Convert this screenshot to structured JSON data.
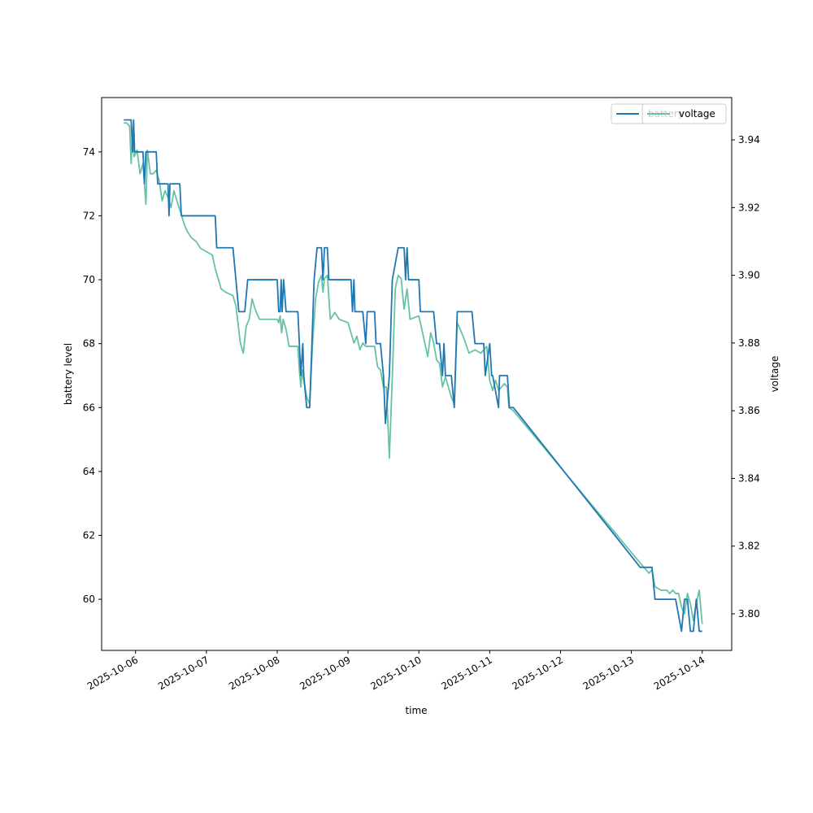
{
  "chart_data": {
    "type": "line",
    "title": "",
    "xlabel": "time",
    "ylabel_left": "battery level",
    "ylabel_right": "voltage",
    "x_range": [
      "2025-10-05T12:30",
      "2025-10-14T10:00"
    ],
    "y_left_range": [
      58.4,
      75.7
    ],
    "y_right_range": [
      3.7892,
      3.9525
    ],
    "x_ticks": [
      "2025-10-06",
      "2025-10-07",
      "2025-10-08",
      "2025-10-09",
      "2025-10-10",
      "2025-10-11",
      "2025-10-12",
      "2025-10-13",
      "2025-10-14"
    ],
    "y_left_ticks": [
      60,
      62,
      64,
      66,
      68,
      70,
      72,
      74
    ],
    "y_right_ticks": [
      "3.80",
      "3.82",
      "3.84",
      "3.86",
      "3.88",
      "3.90",
      "3.92",
      "3.94"
    ],
    "grid": false,
    "legend": {
      "placement": "upper right",
      "entries": [
        "battery",
        "voltage"
      ]
    },
    "colors": {
      "battery": "#1f77b4",
      "voltage": "#66c2a5"
    },
    "series": [
      {
        "name": "battery",
        "axis": "left",
        "points": [
          [
            "2025-10-05T20:00",
            75
          ],
          [
            "2025-10-05T22:30",
            75
          ],
          [
            "2025-10-05T23:00",
            74
          ],
          [
            "2025-10-05T23:20",
            75
          ],
          [
            "2025-10-05T23:40",
            74
          ],
          [
            "2025-10-06T02:30",
            74
          ],
          [
            "2025-10-06T03:00",
            73
          ],
          [
            "2025-10-06T03:30",
            74
          ],
          [
            "2025-10-06T07:00",
            74
          ],
          [
            "2025-10-06T07:30",
            73
          ],
          [
            "2025-10-06T11:00",
            73
          ],
          [
            "2025-10-06T11:20",
            72
          ],
          [
            "2025-10-06T11:40",
            73
          ],
          [
            "2025-10-06T15:00",
            73
          ],
          [
            "2025-10-06T15:30",
            72
          ],
          [
            "2025-10-07T03:00",
            72
          ],
          [
            "2025-10-07T03:30",
            71
          ],
          [
            "2025-10-07T09:00",
            71
          ],
          [
            "2025-10-07T10:00",
            70
          ],
          [
            "2025-10-07T11:00",
            69
          ],
          [
            "2025-10-07T13:00",
            69
          ],
          [
            "2025-10-07T14:00",
            70
          ],
          [
            "2025-10-08T00:00",
            70
          ],
          [
            "2025-10-08T00:30",
            69
          ],
          [
            "2025-10-08T01:00",
            69
          ],
          [
            "2025-10-08T01:20",
            70
          ],
          [
            "2025-10-08T01:40",
            69
          ],
          [
            "2025-10-08T02:10",
            70
          ],
          [
            "2025-10-08T03:00",
            69
          ],
          [
            "2025-10-08T07:00",
            69
          ],
          [
            "2025-10-08T08:00",
            67
          ],
          [
            "2025-10-08T08:40",
            68
          ],
          [
            "2025-10-08T09:00",
            67
          ],
          [
            "2025-10-08T10:00",
            66
          ],
          [
            "2025-10-08T11:00",
            66
          ],
          [
            "2025-10-08T12:30",
            70
          ],
          [
            "2025-10-08T13:30",
            71
          ],
          [
            "2025-10-08T15:00",
            71
          ],
          [
            "2025-10-08T15:30",
            70
          ],
          [
            "2025-10-08T16:00",
            71
          ],
          [
            "2025-10-08T17:00",
            71
          ],
          [
            "2025-10-08T17:30",
            70
          ],
          [
            "2025-10-09T00:00",
            70
          ],
          [
            "2025-10-09T01:00",
            70
          ],
          [
            "2025-10-09T01:30",
            69
          ],
          [
            "2025-10-09T02:00",
            70
          ],
          [
            "2025-10-09T02:20",
            69
          ],
          [
            "2025-10-09T05:00",
            69
          ],
          [
            "2025-10-09T06:00",
            68
          ],
          [
            "2025-10-09T06:30",
            69
          ],
          [
            "2025-10-09T09:00",
            69
          ],
          [
            "2025-10-09T09:30",
            68
          ],
          [
            "2025-10-09T11:00",
            68
          ],
          [
            "2025-10-09T12:00",
            67
          ],
          [
            "2025-10-09T12:40",
            65.5
          ],
          [
            "2025-10-09T14:00",
            67
          ],
          [
            "2025-10-09T15:00",
            70
          ],
          [
            "2025-10-09T16:00",
            70.5
          ],
          [
            "2025-10-09T17:00",
            71
          ],
          [
            "2025-10-09T19:00",
            71
          ],
          [
            "2025-10-09T19:30",
            70
          ],
          [
            "2025-10-09T20:00",
            71
          ],
          [
            "2025-10-09T20:30",
            70
          ],
          [
            "2025-10-10T00:00",
            70
          ],
          [
            "2025-10-10T00:30",
            69
          ],
          [
            "2025-10-10T05:00",
            69
          ],
          [
            "2025-10-10T06:00",
            68
          ],
          [
            "2025-10-10T07:00",
            68
          ],
          [
            "2025-10-10T08:00",
            67
          ],
          [
            "2025-10-10T08:30",
            68
          ],
          [
            "2025-10-10T09:00",
            67
          ],
          [
            "2025-10-10T11:00",
            67
          ],
          [
            "2025-10-10T12:00",
            66
          ],
          [
            "2025-10-10T13:00",
            69
          ],
          [
            "2025-10-10T18:00",
            69
          ],
          [
            "2025-10-10T19:00",
            68
          ],
          [
            "2025-10-10T22:00",
            68
          ],
          [
            "2025-10-10T22:30",
            67
          ],
          [
            "2025-10-11T00:00",
            68
          ],
          [
            "2025-10-11T00:40",
            67
          ],
          [
            "2025-10-11T01:00",
            67
          ],
          [
            "2025-10-11T03:00",
            66
          ],
          [
            "2025-10-11T03:20",
            67
          ],
          [
            "2025-10-11T06:00",
            67
          ],
          [
            "2025-10-11T06:40",
            66
          ],
          [
            "2025-10-11T08:00",
            66
          ],
          [
            "2025-10-13T03:00",
            61
          ],
          [
            "2025-10-13T07:00",
            61
          ],
          [
            "2025-10-13T08:00",
            60
          ],
          [
            "2025-10-13T15:00",
            60
          ],
          [
            "2025-10-13T17:00",
            59
          ],
          [
            "2025-10-13T18:00",
            60
          ],
          [
            "2025-10-13T19:00",
            60
          ],
          [
            "2025-10-13T20:00",
            59
          ],
          [
            "2025-10-13T21:00",
            59
          ],
          [
            "2025-10-13T22:00",
            60
          ],
          [
            "2025-10-13T23:00",
            59
          ],
          [
            "2025-10-14T00:00",
            59
          ]
        ]
      },
      {
        "name": "voltage",
        "axis": "right",
        "points": [
          [
            "2025-10-05T20:00",
            3.945
          ],
          [
            "2025-10-05T21:00",
            3.945
          ],
          [
            "2025-10-05T22:00",
            3.944
          ],
          [
            "2025-10-05T22:30",
            3.933
          ],
          [
            "2025-10-05T23:00",
            3.942
          ],
          [
            "2025-10-05T23:30",
            3.935
          ],
          [
            "2025-10-06T00:30",
            3.937
          ],
          [
            "2025-10-06T01:30",
            3.93
          ],
          [
            "2025-10-06T02:30",
            3.933
          ],
          [
            "2025-10-06T03:30",
            3.921
          ],
          [
            "2025-10-06T04:00",
            3.937
          ],
          [
            "2025-10-06T05:00",
            3.93
          ],
          [
            "2025-10-06T06:00",
            3.93
          ],
          [
            "2025-10-06T07:00",
            3.931
          ],
          [
            "2025-10-06T08:00",
            3.928
          ],
          [
            "2025-10-06T09:00",
            3.922
          ],
          [
            "2025-10-06T10:00",
            3.925
          ],
          [
            "2025-10-06T11:00",
            3.923
          ],
          [
            "2025-10-06T12:00",
            3.92
          ],
          [
            "2025-10-06T13:00",
            3.925
          ],
          [
            "2025-10-06T14:00",
            3.922
          ],
          [
            "2025-10-06T15:30",
            3.918
          ],
          [
            "2025-10-06T16:30",
            3.915
          ],
          [
            "2025-10-06T17:30",
            3.913
          ],
          [
            "2025-10-06T19:00",
            3.911
          ],
          [
            "2025-10-06T20:30",
            3.91
          ],
          [
            "2025-10-06T22:00",
            3.908
          ],
          [
            "2025-10-07T00:00",
            3.907
          ],
          [
            "2025-10-07T02:00",
            3.906
          ],
          [
            "2025-10-07T03:00",
            3.902
          ],
          [
            "2025-10-07T04:00",
            3.899
          ],
          [
            "2025-10-07T05:00",
            3.896
          ],
          [
            "2025-10-07T06:30",
            3.895
          ],
          [
            "2025-10-07T09:00",
            3.894
          ],
          [
            "2025-10-07T10:00",
            3.891
          ],
          [
            "2025-10-07T11:30",
            3.88
          ],
          [
            "2025-10-07T12:30",
            3.877
          ],
          [
            "2025-10-07T13:30",
            3.885
          ],
          [
            "2025-10-07T14:30",
            3.887
          ],
          [
            "2025-10-07T15:30",
            3.893
          ],
          [
            "2025-10-07T16:30",
            3.89
          ],
          [
            "2025-10-07T18:00",
            3.887
          ],
          [
            "2025-10-07T21:00",
            3.887
          ],
          [
            "2025-10-08T00:00",
            3.887
          ],
          [
            "2025-10-08T00:30",
            3.886
          ],
          [
            "2025-10-08T01:00",
            3.888
          ],
          [
            "2025-10-08T01:30",
            3.883
          ],
          [
            "2025-10-08T02:00",
            3.887
          ],
          [
            "2025-10-08T03:00",
            3.884
          ],
          [
            "2025-10-08T04:00",
            3.879
          ],
          [
            "2025-10-08T05:30",
            3.879
          ],
          [
            "2025-10-08T07:00",
            3.879
          ],
          [
            "2025-10-08T07:30",
            3.872
          ],
          [
            "2025-10-08T08:00",
            3.867
          ],
          [
            "2025-10-08T08:30",
            3.872
          ],
          [
            "2025-10-08T09:00",
            3.869
          ],
          [
            "2025-10-08T10:00",
            3.864
          ],
          [
            "2025-10-08T11:00",
            3.862
          ],
          [
            "2025-10-08T12:00",
            3.88
          ],
          [
            "2025-10-08T13:00",
            3.893
          ],
          [
            "2025-10-08T14:00",
            3.898
          ],
          [
            "2025-10-08T15:00",
            3.9
          ],
          [
            "2025-10-08T15:30",
            3.895
          ],
          [
            "2025-10-08T16:00",
            3.899
          ],
          [
            "2025-10-08T17:00",
            3.9
          ],
          [
            "2025-10-08T18:00",
            3.887
          ],
          [
            "2025-10-08T19:30",
            3.889
          ],
          [
            "2025-10-08T21:00",
            3.887
          ],
          [
            "2025-10-09T00:00",
            3.886
          ],
          [
            "2025-10-09T01:00",
            3.883
          ],
          [
            "2025-10-09T02:00",
            3.88
          ],
          [
            "2025-10-09T03:00",
            3.882
          ],
          [
            "2025-10-09T04:00",
            3.878
          ],
          [
            "2025-10-09T05:00",
            3.88
          ],
          [
            "2025-10-09T06:00",
            3.879
          ],
          [
            "2025-10-09T07:00",
            3.879
          ],
          [
            "2025-10-09T09:00",
            3.879
          ],
          [
            "2025-10-09T10:00",
            3.873
          ],
          [
            "2025-10-09T11:00",
            3.872
          ],
          [
            "2025-10-09T12:00",
            3.867
          ],
          [
            "2025-10-09T13:00",
            3.867
          ],
          [
            "2025-10-09T14:00",
            3.846
          ],
          [
            "2025-10-09T15:00",
            3.87
          ],
          [
            "2025-10-09T16:00",
            3.896
          ],
          [
            "2025-10-09T17:00",
            3.9
          ],
          [
            "2025-10-09T18:00",
            3.899
          ],
          [
            "2025-10-09T19:00",
            3.89
          ],
          [
            "2025-10-09T20:00",
            3.896
          ],
          [
            "2025-10-09T21:00",
            3.887
          ],
          [
            "2025-10-10T00:00",
            3.888
          ],
          [
            "2025-10-10T01:00",
            3.884
          ],
          [
            "2025-10-10T02:00",
            3.88
          ],
          [
            "2025-10-10T03:00",
            3.876
          ],
          [
            "2025-10-10T04:00",
            3.883
          ],
          [
            "2025-10-10T05:00",
            3.88
          ],
          [
            "2025-10-10T06:00",
            3.875
          ],
          [
            "2025-10-10T07:00",
            3.874
          ],
          [
            "2025-10-10T08:00",
            3.867
          ],
          [
            "2025-10-10T09:00",
            3.87
          ],
          [
            "2025-10-10T10:00",
            3.867
          ],
          [
            "2025-10-10T11:00",
            3.864
          ],
          [
            "2025-10-10T12:00",
            3.862
          ],
          [
            "2025-10-10T13:00",
            3.886
          ],
          [
            "2025-10-10T15:00",
            3.882
          ],
          [
            "2025-10-10T17:00",
            3.877
          ],
          [
            "2025-10-10T19:00",
            3.878
          ],
          [
            "2025-10-10T21:00",
            3.877
          ],
          [
            "2025-10-10T23:00",
            3.879
          ],
          [
            "2025-10-11T00:00",
            3.869
          ],
          [
            "2025-10-11T01:00",
            3.866
          ],
          [
            "2025-10-11T02:00",
            3.869
          ],
          [
            "2025-10-11T03:00",
            3.866
          ],
          [
            "2025-10-11T04:00",
            3.867
          ],
          [
            "2025-10-11T05:00",
            3.868
          ],
          [
            "2025-10-11T06:00",
            3.867
          ],
          [
            "2025-10-11T06:30",
            3.861
          ],
          [
            "2025-10-11T08:00",
            3.86
          ],
          [
            "2025-10-13T03:00",
            3.815
          ],
          [
            "2025-10-13T05:00",
            3.813
          ],
          [
            "2025-10-13T06:00",
            3.812
          ],
          [
            "2025-10-13T07:00",
            3.813
          ],
          [
            "2025-10-13T08:00",
            3.808
          ],
          [
            "2025-10-13T10:00",
            3.807
          ],
          [
            "2025-10-13T12:00",
            3.807
          ],
          [
            "2025-10-13T13:00",
            3.806
          ],
          [
            "2025-10-13T14:00",
            3.807
          ],
          [
            "2025-10-13T15:00",
            3.806
          ],
          [
            "2025-10-13T16:00",
            3.806
          ],
          [
            "2025-10-13T17:00",
            3.802
          ],
          [
            "2025-10-13T18:00",
            3.8
          ],
          [
            "2025-10-13T19:00",
            3.806
          ],
          [
            "2025-10-13T20:00",
            3.803
          ],
          [
            "2025-10-13T21:00",
            3.798
          ],
          [
            "2025-10-13T22:00",
            3.803
          ],
          [
            "2025-10-13T23:00",
            3.807
          ],
          [
            "2025-10-14T00:00",
            3.797
          ]
        ]
      }
    ]
  }
}
